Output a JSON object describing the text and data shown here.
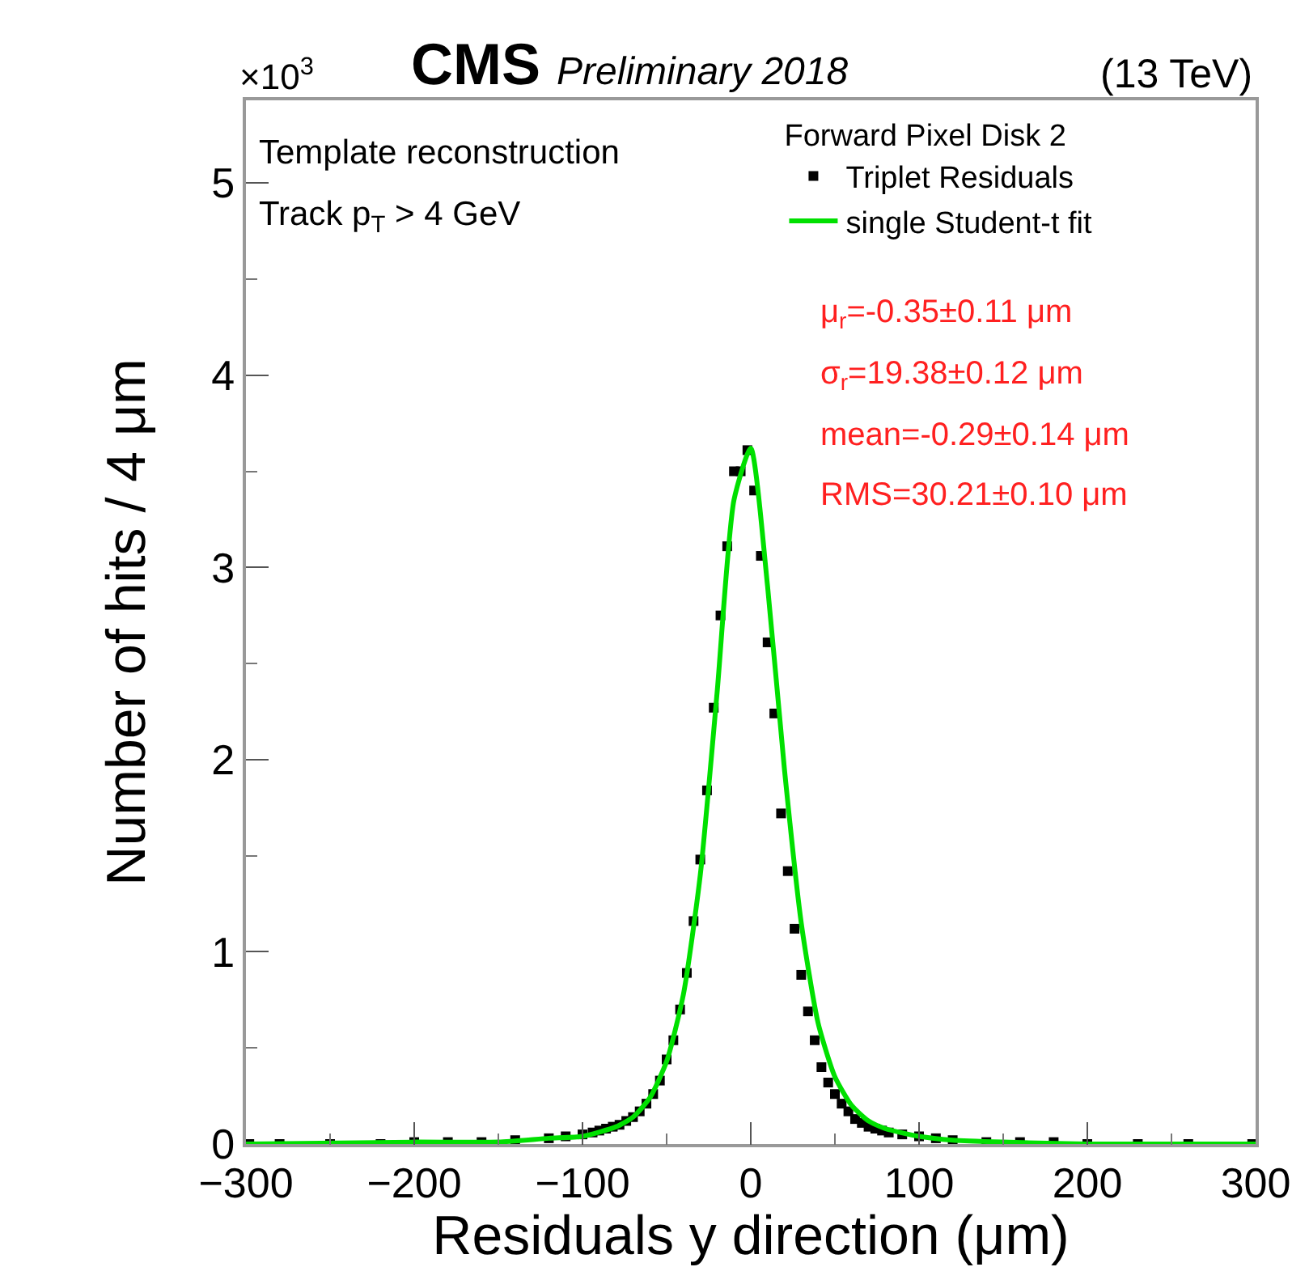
{
  "chart_data": {
    "type": "scatter",
    "title": "CMS",
    "subtitle": "Preliminary 2018",
    "xlabel": "Residuals y direction (μm)",
    "ylabel": "Number of hits / 4 μm",
    "legend_title": "Forward Pixel Disk 2",
    "annotations": [
      "(13 TeV)",
      "×10$^{3}$",
      "Template reconstruction",
      "Track p$_{T}$ > 4 GeV",
      "μ$_{r}$=-0.35±0.11 μm",
      "σ$_{r}$=19.38±0.12 μm",
      "mean=-0.29±0.14 μm",
      "RMS=30.21±0.10 μm"
    ],
    "xlim": [
      -300,
      300
    ],
    "xticks": [
      {
        "value": -300,
        "label": "−300"
      },
      {
        "value": -200,
        "label": "−200"
      },
      {
        "value": -100,
        "label": "−100"
      },
      0,
      100,
      200,
      300
    ],
    "ylim": [
      0,
      5.43
    ],
    "yticks": [
      0,
      1,
      2,
      3,
      4,
      5
    ],
    "legend": "top right",
    "marker": "square",
    "series": [
      {
        "name": "Triplet Residuals",
        "color": "#000000",
        "x": [
          -298,
          -280,
          -250,
          -220,
          -200,
          -180,
          -160,
          -140,
          -120,
          -110,
          -100,
          -94,
          -90,
          -86,
          -82,
          -78,
          -74,
          -70,
          -66,
          -62,
          -58,
          -54,
          -50,
          -46,
          -42,
          -38,
          -34,
          -30,
          -26,
          -22,
          -18,
          -14,
          -10,
          -6,
          -2,
          2,
          6,
          10,
          14,
          18,
          22,
          26,
          30,
          34,
          38,
          42,
          46,
          50,
          54,
          58,
          62,
          66,
          70,
          74,
          78,
          82,
          90,
          100,
          110,
          120,
          140,
          160,
          180,
          200,
          230,
          260,
          298
        ],
        "values": [
          0,
          0,
          0,
          0,
          0.01,
          0.01,
          0.01,
          0.02,
          0.03,
          0.04,
          0.05,
          0.06,
          0.07,
          0.08,
          0.09,
          0.1,
          0.12,
          0.14,
          0.17,
          0.21,
          0.26,
          0.33,
          0.44,
          0.54,
          0.7,
          0.89,
          1.16,
          1.48,
          1.84,
          2.27,
          2.75,
          3.11,
          3.5,
          3.5,
          3.61,
          3.4,
          3.06,
          2.61,
          2.24,
          1.72,
          1.42,
          1.12,
          0.88,
          0.69,
          0.54,
          0.4,
          0.32,
          0.26,
          0.21,
          0.17,
          0.13,
          0.11,
          0.09,
          0.08,
          0.07,
          0.06,
          0.05,
          0.04,
          0.03,
          0.02,
          0.01,
          0.01,
          0.01,
          0,
          0,
          0,
          0
        ]
      },
      {
        "name": "single Student-t fit",
        "type": "line",
        "color": "#00e000",
        "marker": "none",
        "x": [
          -300,
          -200,
          -150,
          -120,
          -100,
          -80,
          -70,
          -60,
          -50,
          -40,
          -30,
          -20,
          -10,
          0,
          10,
          20,
          30,
          40,
          50,
          60,
          70,
          80,
          100,
          120,
          150,
          200,
          300
        ],
        "values": [
          0,
          0.01,
          0.01,
          0.03,
          0.04,
          0.09,
          0.14,
          0.24,
          0.43,
          0.78,
          1.4,
          2.35,
          3.35,
          3.62,
          2.9,
          1.95,
          1.15,
          0.63,
          0.35,
          0.2,
          0.12,
          0.08,
          0.04,
          0.02,
          0.01,
          0,
          0
        ]
      }
    ]
  }
}
